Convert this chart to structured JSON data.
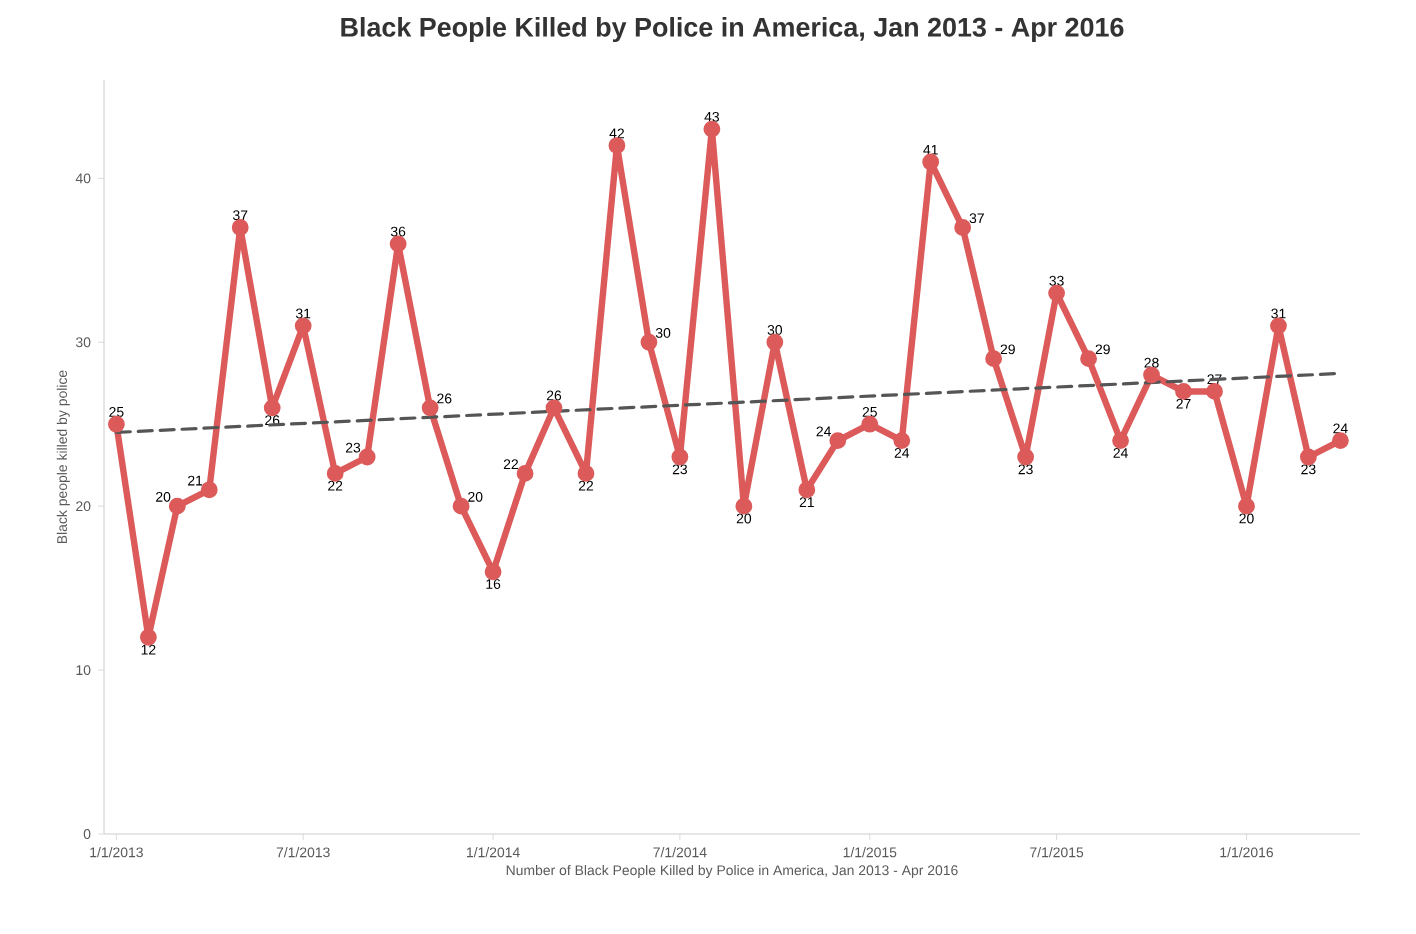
{
  "chart_data": {
    "type": "line",
    "title": "Black People Killed by Police in America, Jan 2013 - Apr 2016",
    "xlabel": "Number of Black People Killed by Police in America, Jan 2013 - Apr 2016",
    "ylabel": "Black people killed by police",
    "x": [
      "2013-01-01",
      "2013-02-01",
      "2013-03-01",
      "2013-04-01",
      "2013-05-01",
      "2013-06-01",
      "2013-07-01",
      "2013-08-01",
      "2013-09-01",
      "2013-10-01",
      "2013-11-01",
      "2013-12-01",
      "2014-01-01",
      "2014-02-01",
      "2014-03-01",
      "2014-04-01",
      "2014-05-01",
      "2014-06-01",
      "2014-07-01",
      "2014-08-01",
      "2014-09-01",
      "2014-10-01",
      "2014-11-01",
      "2014-12-01",
      "2015-01-01",
      "2015-02-01",
      "2015-03-01",
      "2015-04-01",
      "2015-05-01",
      "2015-06-01",
      "2015-07-01",
      "2015-08-01",
      "2015-09-01",
      "2015-10-01",
      "2015-11-01",
      "2015-12-01",
      "2016-01-01",
      "2016-02-01",
      "2016-03-01",
      "2016-04-01"
    ],
    "series": [
      {
        "color": "#dc5a5a",
        "values": [
          25,
          12,
          20,
          21,
          37,
          26,
          31,
          22,
          23,
          36,
          26,
          20,
          16,
          22,
          26,
          22,
          42,
          30,
          23,
          43,
          20,
          30,
          21,
          24,
          25,
          24,
          41,
          37,
          29,
          23,
          33,
          29,
          24,
          28,
          27,
          27,
          20,
          31,
          23,
          24
        ],
        "value_labels": [
          "25",
          "12",
          "20",
          "21",
          "37",
          "26",
          "31",
          "22",
          "23",
          "36",
          "26",
          "20",
          "16",
          "22",
          "26",
          "22",
          "42",
          "30",
          "23",
          "43",
          "20",
          "30",
          "21",
          "24",
          "25",
          "24",
          "41",
          "37",
          "29",
          "23",
          "33",
          "29",
          "24",
          "28",
          "27",
          "27",
          "20",
          "31",
          "23",
          "24"
        ]
      },
      {
        "type": "line",
        "x": [
          "2013-01-01",
          "2016-04-01"
        ],
        "color": "#555555",
        "line_style": "dashed",
        "marker": "none",
        "values": [
          24.5,
          28.1
        ]
      }
    ],
    "xlim": [
      "2012-12-20",
      "2016-04-20"
    ],
    "xticks": [
      {
        "value": "2013-01-01",
        "label": "1/1/2013"
      },
      {
        "value": "2013-07-01",
        "label": "7/1/2013"
      },
      {
        "value": "2014-01-01",
        "label": "1/1/2014"
      },
      {
        "value": "2014-07-01",
        "label": "7/1/2014"
      },
      {
        "value": "2015-01-01",
        "label": "1/1/2015"
      },
      {
        "value": "2015-07-01",
        "label": "7/1/2015"
      },
      {
        "value": "2016-01-01",
        "label": "1/1/2016"
      }
    ],
    "ylim": [
      0,
      46
    ],
    "yticks": [
      0,
      10,
      20,
      30,
      40
    ],
    "marker": "circle",
    "line_style": "solid",
    "grid": false
  }
}
